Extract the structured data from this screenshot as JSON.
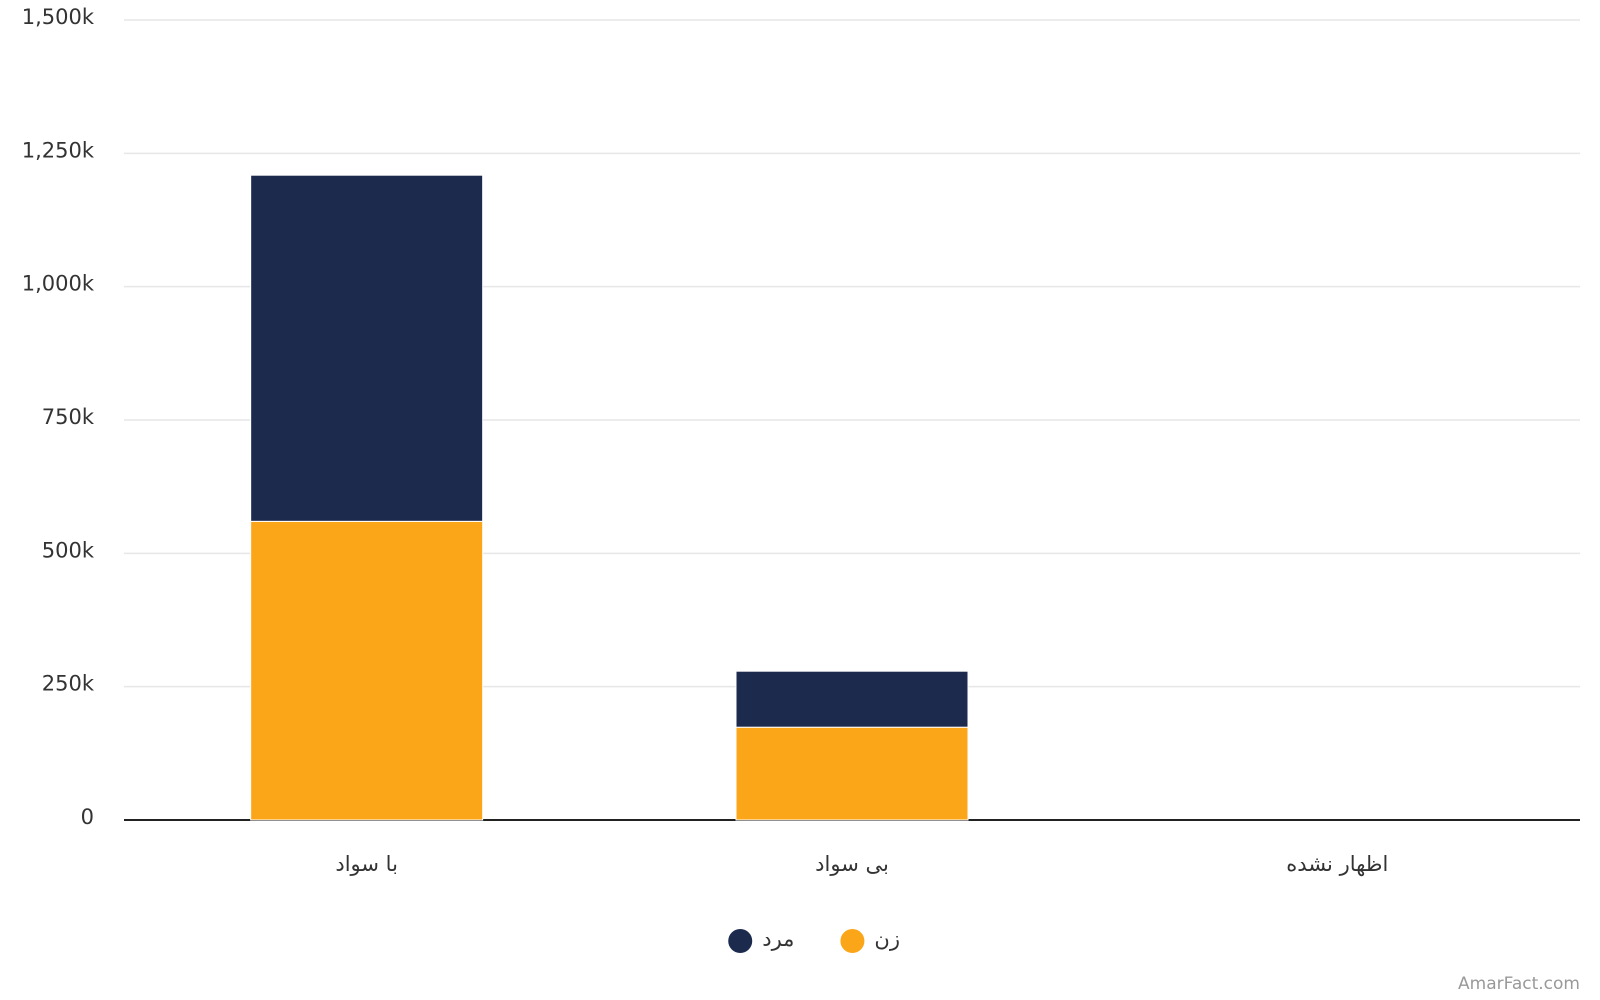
{
  "chart_data": {
    "type": "stacked_bar",
    "categories": [
      "با سواد",
      "بی سواد",
      "اظهار نشده"
    ],
    "series": [
      {
        "name": "زن",
        "color": "#fba518",
        "values": [
          560000,
          174000,
          0
        ]
      },
      {
        "name": "مرد",
        "color": "#1c2a4e",
        "values": [
          649000,
          105000,
          0
        ]
      }
    ],
    "ylim": [
      0,
      1500000
    ],
    "yticks": [
      0,
      {
        "value": 250000,
        "label": "250k"
      },
      {
        "value": 500000,
        "label": "500k"
      },
      {
        "value": 750000,
        "label": "750k"
      },
      {
        "value": 1000000,
        "label": "1,000k"
      },
      {
        "value": 1250000,
        "label": "1,250k"
      },
      {
        "value": 1500000,
        "label": "1,500k"
      }
    ],
    "grid": true,
    "legend": "bottom",
    "watermark": "AmarFact.com"
  }
}
